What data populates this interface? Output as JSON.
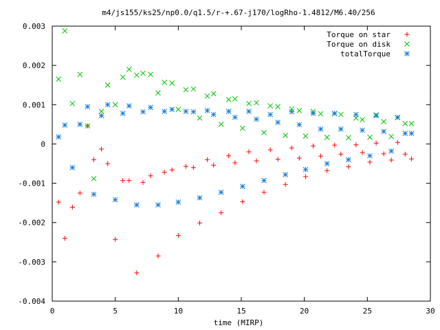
{
  "chart_data": {
    "type": "scatter",
    "title": "m4/js155/ks25/np0.0/q1.5/r-+.67-j170/logRho-1.4812/M6.40/256",
    "xlabel": "time (MIRP)",
    "ylabel": "",
    "xlim": [
      0,
      30
    ],
    "ylim": [
      -0.004,
      0.003
    ],
    "grid": false,
    "legend_position": "top-right",
    "x_ticks": [
      0,
      5,
      10,
      15,
      20,
      25,
      30
    ],
    "x_tick_labels": [
      "0",
      "5",
      "10",
      "15",
      "20",
      "25",
      "30"
    ],
    "y_ticks": [
      -0.004,
      -0.003,
      -0.002,
      -0.001,
      0,
      0.001,
      0.002,
      0.003
    ],
    "y_tick_labels": [
      "-0.004",
      "-0.003",
      "-0.002",
      "-0.001",
      "0",
      "0.001",
      "0.002",
      "0.003"
    ],
    "series": [
      {
        "name": "Torque on star",
        "marker": "plus",
        "color": "#ff0000",
        "points": [
          [
            0.5,
            -0.00148
          ],
          [
            1.0,
            -0.0024
          ],
          [
            1.6,
            -0.00161
          ],
          [
            2.2,
            -0.00125
          ],
          [
            2.8,
            0.00046
          ],
          [
            3.3,
            -0.0004
          ],
          [
            3.9,
            -0.00013
          ],
          [
            4.4,
            -0.0005
          ],
          [
            5.0,
            -0.00243
          ],
          [
            5.6,
            -0.00093
          ],
          [
            6.1,
            -0.00093
          ],
          [
            6.7,
            -0.00328
          ],
          [
            7.2,
            -0.00098
          ],
          [
            7.8,
            -0.00081
          ],
          [
            8.4,
            -0.00285
          ],
          [
            8.9,
            -0.00072
          ],
          [
            9.5,
            -0.00066
          ],
          [
            10.0,
            -0.00233
          ],
          [
            10.6,
            -0.00057
          ],
          [
            11.2,
            -0.0006
          ],
          [
            11.7,
            -0.00201
          ],
          [
            12.3,
            -0.0004
          ],
          [
            12.8,
            -0.00054
          ],
          [
            13.4,
            -0.00175
          ],
          [
            14.0,
            -0.0003
          ],
          [
            14.5,
            -0.00048
          ],
          [
            15.1,
            -0.00147
          ],
          [
            15.6,
            -0.0002
          ],
          [
            16.2,
            -0.00043
          ],
          [
            16.8,
            -0.00123
          ],
          [
            17.3,
            -0.00015
          ],
          [
            17.9,
            -0.00039
          ],
          [
            18.5,
            -0.00103
          ],
          [
            19.0,
            -0.0001
          ],
          [
            19.6,
            -0.00036
          ],
          [
            20.1,
            -0.00083
          ],
          [
            20.7,
            -5e-05
          ],
          [
            21.3,
            -0.00031
          ],
          [
            21.8,
            -0.00068
          ],
          [
            22.4,
            -3e-05
          ],
          [
            22.9,
            -0.00026
          ],
          [
            23.5,
            -0.00058
          ],
          [
            24.1,
            -2e-05
          ],
          [
            24.6,
            -0.00022
          ],
          [
            25.2,
            -0.00046
          ],
          [
            25.7,
            2e-05
          ],
          [
            26.3,
            -0.00025
          ],
          [
            26.9,
            -0.00041
          ],
          [
            27.4,
            4e-05
          ],
          [
            28.0,
            -0.00026
          ],
          [
            28.5,
            -0.00038
          ]
        ]
      },
      {
        "name": "Torque on disk",
        "marker": "cross",
        "color": "#00c000",
        "points": [
          [
            0.5,
            0.00165
          ],
          [
            1.0,
            0.00288
          ],
          [
            1.6,
            0.00103
          ],
          [
            2.2,
            0.00177
          ],
          [
            2.8,
            0.00046
          ],
          [
            3.3,
            -0.00088
          ],
          [
            3.9,
            0.00083
          ],
          [
            4.4,
            0.0015
          ],
          [
            5.0,
            0.001
          ],
          [
            5.6,
            0.0017
          ],
          [
            6.1,
            0.0019
          ],
          [
            6.7,
            0.00175
          ],
          [
            7.2,
            0.0018
          ],
          [
            7.8,
            0.00177
          ],
          [
            8.4,
            0.0013
          ],
          [
            8.9,
            0.00157
          ],
          [
            9.5,
            0.00155
          ],
          [
            10.0,
            0.00088
          ],
          [
            10.6,
            0.00138
          ],
          [
            11.2,
            0.0014
          ],
          [
            11.7,
            0.00066
          ],
          [
            12.3,
            0.00122
          ],
          [
            12.8,
            0.00128
          ],
          [
            13.4,
            0.0005
          ],
          [
            14.0,
            0.00113
          ],
          [
            14.5,
            0.00115
          ],
          [
            15.1,
            0.0004
          ],
          [
            15.6,
            0.00103
          ],
          [
            16.2,
            0.00105
          ],
          [
            16.8,
            0.00029
          ],
          [
            17.3,
            0.00097
          ],
          [
            17.9,
            0.00095
          ],
          [
            18.5,
            0.00022
          ],
          [
            19.0,
            0.00089
          ],
          [
            19.6,
            0.00085
          ],
          [
            20.1,
            0.0002
          ],
          [
            20.7,
            0.00083
          ],
          [
            21.3,
            0.00077
          ],
          [
            21.8,
            0.00017
          ],
          [
            22.4,
            0.00077
          ],
          [
            22.9,
            0.00075
          ],
          [
            23.5,
            0.00016
          ],
          [
            24.1,
            0.00066
          ],
          [
            24.6,
            0.00062
          ],
          [
            25.2,
            0.00017
          ],
          [
            25.7,
            0.00074
          ],
          [
            26.3,
            0.00057
          ],
          [
            26.9,
            0.00019
          ],
          [
            27.4,
            0.00067
          ],
          [
            28.0,
            0.00052
          ],
          [
            28.5,
            0.00052
          ]
        ]
      },
      {
        "name": "totalTorque",
        "marker": "star",
        "color": "#1a7fd8",
        "points": [
          [
            0.5,
            0.00018
          ],
          [
            1.0,
            0.00048
          ],
          [
            1.6,
            -0.0006
          ],
          [
            2.2,
            0.0005
          ],
          [
            2.8,
            0.00095
          ],
          [
            3.3,
            -0.00128
          ],
          [
            3.9,
            0.00072
          ],
          [
            4.4,
            0.001
          ],
          [
            5.0,
            -0.00142
          ],
          [
            5.6,
            0.00078
          ],
          [
            6.1,
            0.00097
          ],
          [
            6.7,
            -0.00155
          ],
          [
            7.2,
            0.00082
          ],
          [
            7.8,
            0.00093
          ],
          [
            8.4,
            -0.00155
          ],
          [
            8.9,
            0.00083
          ],
          [
            9.5,
            0.00088
          ],
          [
            10.0,
            -0.00148
          ],
          [
            10.6,
            0.00083
          ],
          [
            11.2,
            0.00082
          ],
          [
            11.7,
            -0.00137
          ],
          [
            12.3,
            0.00085
          ],
          [
            12.8,
            0.00075
          ],
          [
            13.4,
            -0.00123
          ],
          [
            14.0,
            0.00083
          ],
          [
            14.5,
            0.00068
          ],
          [
            15.1,
            -0.00108
          ],
          [
            15.6,
            0.00083
          ],
          [
            16.2,
            0.00063
          ],
          [
            16.8,
            -0.00093
          ],
          [
            17.3,
            0.00075
          ],
          [
            17.9,
            0.00055
          ],
          [
            18.5,
            -0.00078
          ],
          [
            19.0,
            0.00082
          ],
          [
            19.6,
            0.00049
          ],
          [
            20.1,
            -0.00065
          ],
          [
            20.7,
            0.00078
          ],
          [
            21.3,
            0.00038
          ],
          [
            21.8,
            -0.0005
          ],
          [
            22.4,
            0.00078
          ],
          [
            22.9,
            0.00038
          ],
          [
            23.5,
            -0.0004
          ],
          [
            24.1,
            0.00075
          ],
          [
            24.6,
            0.00035
          ],
          [
            25.2,
            -0.0003
          ],
          [
            25.7,
            0.00072
          ],
          [
            26.3,
            0.00032
          ],
          [
            26.9,
            -0.00018
          ],
          [
            27.4,
            0.00068
          ],
          [
            28.0,
            0.00027
          ],
          [
            28.5,
            0.00027
          ]
        ]
      }
    ]
  }
}
